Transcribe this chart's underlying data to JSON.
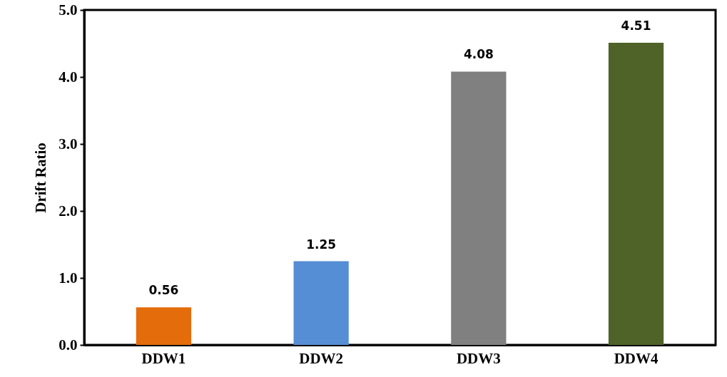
{
  "chart_data": {
    "type": "bar",
    "ylabel": "Drift Ratio",
    "categories": [
      "DDW1",
      "DDW2",
      "DDW3",
      "DDW4"
    ],
    "values": [
      0.56,
      1.25,
      4.08,
      4.51
    ],
    "colors": [
      "#e46c0a",
      "#558ed5",
      "#808080",
      "#4f6228"
    ],
    "ylim": [
      0,
      5
    ],
    "yticks": [
      {
        "value": 0,
        "label": "0.0"
      },
      {
        "value": 1,
        "label": "1.0"
      },
      {
        "value": 2,
        "label": "2.0"
      },
      {
        "value": 3,
        "label": "3.0"
      },
      {
        "value": 4,
        "label": "4.0"
      },
      {
        "value": 5,
        "label": "5.0"
      }
    ],
    "grid": false,
    "legend": false,
    "data_labels": true
  }
}
